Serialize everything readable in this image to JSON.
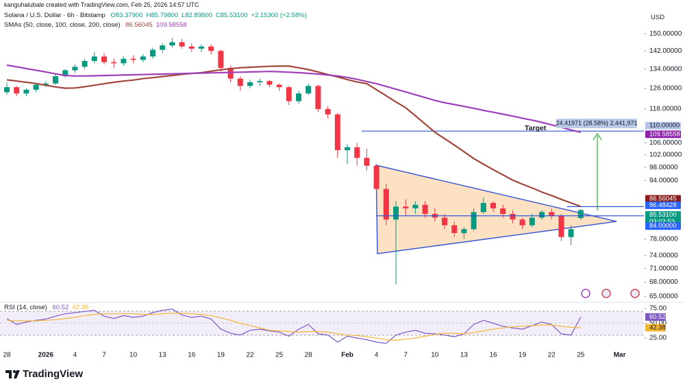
{
  "header": {
    "credit": "kanguhalubale created with TradingView.com, Feb 25, 2026 14:57 UTC"
  },
  "chart_data": {
    "type": "candlestick",
    "symbol": "Solana / U.S. Dollar · 6h · Bitstamp",
    "ohlc_legend": [
      "O83.37900",
      "H85.79800",
      "L82.89800",
      "C85.53100",
      "+2.15300 (+2.58%)"
    ],
    "currency": "USD",
    "categories": [
      "28",
      null,
      null,
      null,
      "2026",
      null,
      null,
      "4",
      null,
      null,
      "7",
      null,
      null,
      "10",
      null,
      null,
      "13",
      null,
      null,
      "16",
      null,
      null,
      "19",
      null,
      null,
      "22",
      null,
      null,
      "25",
      null,
      null,
      "28",
      null,
      null,
      null,
      "Feb",
      null,
      null,
      "4",
      null,
      null,
      "7",
      null,
      null,
      "10",
      null,
      null,
      "13",
      null,
      null,
      "16",
      null,
      null,
      "19",
      null,
      null,
      "22",
      null,
      null,
      "25",
      null,
      null,
      null,
      "Mar"
    ],
    "open": [
      124.5,
      126.5,
      124,
      125.5,
      127.5,
      128,
      131,
      133.5,
      135,
      137.5,
      139.5,
      137,
      136.5,
      138.5,
      138,
      139.5,
      142.5,
      144.5,
      146,
      144,
      143,
      144,
      142,
      134.5,
      130,
      127,
      128.5,
      129,
      127.5,
      126.5,
      121,
      124,
      127,
      118,
      116,
      103.5,
      104.5,
      101,
      98.5,
      91.5,
      83,
      86.5,
      86,
      87,
      84.5,
      83.5,
      81.5,
      79.5,
      80.5,
      85,
      87.5,
      86,
      84.5,
      83,
      81.5,
      83.5,
      85,
      84,
      78.5,
      83.379,
      null,
      null,
      null,
      null
    ],
    "high": [
      128.5,
      127,
      126,
      128,
      129,
      132,
      134,
      136,
      138.5,
      141.5,
      141,
      138.5,
      139.5,
      140,
      140.5,
      143.5,
      145.5,
      148,
      147.5,
      145.5,
      145,
      145,
      142.5,
      135.5,
      131,
      129.5,
      130,
      129.5,
      128,
      127,
      125,
      128,
      127.5,
      119,
      116.5,
      105.5,
      106,
      104,
      99,
      93,
      88,
      88.5,
      88,
      88,
      86,
      84.5,
      82.5,
      81,
      86,
      89,
      88,
      87,
      85.5,
      83.5,
      84.5,
      85.5,
      86,
      84.5,
      81.5,
      85.798,
      null,
      null,
      null,
      null
    ],
    "low": [
      123.5,
      123,
      123,
      124.5,
      126.5,
      127.5,
      130.5,
      132.5,
      134,
      136.5,
      136,
      134.5,
      135.5,
      136.5,
      137,
      138.5,
      141,
      143.5,
      143,
      141.5,
      141.5,
      140.5,
      133,
      128.5,
      125,
      126,
      127,
      126.5,
      125,
      119.5,
      120,
      123.5,
      117,
      114.5,
      101,
      99,
      98.5,
      97,
      90.5,
      81.5,
      67.5,
      84,
      84.5,
      83.5,
      82.5,
      80.5,
      78.5,
      78,
      80,
      84.5,
      85,
      83.5,
      82,
      80.5,
      81,
      83,
      83,
      77.5,
      76.5,
      82.898,
      null,
      null,
      null,
      null
    ],
    "close": [
      126.5,
      124,
      125.5,
      127.5,
      128,
      131,
      133.5,
      135,
      137.5,
      139.5,
      137,
      136.5,
      138.5,
      138,
      139.5,
      142.5,
      144.5,
      146,
      144,
      143,
      144,
      142,
      134.5,
      130,
      127,
      128.5,
      129,
      127.5,
      126.5,
      121,
      124,
      127,
      118,
      116,
      103.5,
      104.5,
      101,
      98.5,
      91.5,
      83,
      86.5,
      86,
      87,
      84.5,
      83.5,
      81.5,
      79.5,
      80.5,
      85,
      87.5,
      86,
      84.5,
      83,
      81.5,
      83.5,
      85,
      84,
      78.5,
      80.5,
      85.531,
      null,
      null,
      null,
      null
    ],
    "up_color": "#089981",
    "down_color": "#f23645",
    "log_scale": true,
    "ylim": [
      63.9,
      156.4
    ],
    "yticks": [
      {
        "value": 150,
        "label": "150.00000"
      },
      {
        "value": 142,
        "label": "142.00000"
      },
      {
        "value": 134,
        "label": "134.00000"
      },
      {
        "value": 126,
        "label": "126.00000"
      },
      {
        "value": 118,
        "label": "118.00000"
      },
      {
        "value": 106,
        "label": "106.00000"
      },
      {
        "value": 102,
        "label": "102.00000"
      },
      {
        "value": 98,
        "label": "98.00000"
      },
      {
        "value": 94,
        "label": "94.00000"
      },
      {
        "value": 78,
        "label": "78.00000"
      },
      {
        "value": 74,
        "label": "74.00000"
      },
      {
        "value": 71,
        "label": "71.00000"
      },
      {
        "value": 68,
        "label": "68.00000"
      },
      {
        "value": 65,
        "label": "65.00000"
      }
    ],
    "sma_label": "SMAs (50, close, 100, close, 200, close)",
    "series": [
      {
        "last_label": "86.56045",
        "color": "#a0463c",
        "values": [
          129.5,
          129,
          128.5,
          128,
          127.3,
          126.6,
          126.1,
          126.2,
          126.7,
          127.3,
          127.9,
          128.5,
          129,
          129.4,
          130,
          130.4,
          130.9,
          131.3,
          131.8,
          132.2,
          132.5,
          133.1,
          133.7,
          134.2,
          134.6,
          134.8,
          135,
          135.2,
          135.3,
          135.3,
          134.6,
          133.8,
          132.8,
          131.7,
          130.7,
          129.6,
          128.6,
          127.9,
          125.5,
          123.1,
          120.7,
          118.5,
          115.5,
          112.5,
          109.6,
          107.4,
          105.2,
          103,
          100.8,
          99,
          97.3,
          95.7,
          94.1,
          92.9,
          91.8,
          90.6,
          89.6,
          88.5,
          87.5,
          86.56045,
          null,
          null,
          null,
          null
        ]
      },
      {
        "last_label": "109.58558",
        "color": "#9c3fb8",
        "values": [
          135.7,
          135,
          134.2,
          133.5,
          132.8,
          132,
          131.3,
          131.1,
          131.1,
          131.2,
          131.3,
          131.4,
          131.5,
          131.6,
          131.7,
          131.8,
          131.9,
          132,
          132.1,
          132.2,
          132.3,
          132.4,
          132.5,
          132.6,
          132.7,
          132.8,
          132.9,
          133,
          132.9,
          132.7,
          132.5,
          132.2,
          131.9,
          131.5,
          131.1,
          130.5,
          129.7,
          128.8,
          127.9,
          126.8,
          125.7,
          124.6,
          123.5,
          122.4,
          121.3,
          120.4,
          119.7,
          119,
          118.3,
          117.5,
          116.8,
          116.1,
          115.4,
          114.6,
          113.9,
          113.1,
          112.2,
          111.3,
          110.4,
          109.58558,
          null,
          null,
          null,
          null
        ]
      }
    ],
    "price_tags": [
      {
        "value": 110,
        "label": "110.00000",
        "color": "#b3c5e8"
      },
      {
        "value": 109.58558,
        "label": "109.58558",
        "color": "#8e24aa"
      },
      {
        "value": 86.56045,
        "label": "86.56045",
        "color": "#8b1a1a"
      },
      {
        "value": 86.48428,
        "label": "86.48428",
        "color": "#2962ff"
      },
      {
        "value": 85.531,
        "label": "85.53100",
        "countdown": "03:02:53",
        "color": "#089981"
      },
      {
        "value": 84,
        "label": "84.00000",
        "color": "#2962ff"
      }
    ],
    "annotations": {
      "target": "Target",
      "measure": "24.41971 (28.58%) 2,441,971"
    },
    "rsi": {
      "label": "RSI (14, close)",
      "ylim": [
        11,
        86.6
      ],
      "yticks": [
        {
          "value": 75,
          "label": "75.00"
        },
        {
          "value": 50,
          "label": "50.00"
        },
        {
          "value": 25,
          "label": "25.00"
        }
      ],
      "series": [
        {
          "last_label": "60.52",
          "color": "#7e57c2",
          "values": [
            58,
            48,
            52,
            55,
            57,
            62,
            66,
            68,
            70,
            72,
            62,
            58,
            63,
            60,
            62,
            68,
            72,
            74,
            64,
            60,
            62,
            57,
            40,
            33,
            30,
            38,
            40,
            37,
            35,
            28,
            40,
            48,
            32,
            30,
            18,
            28,
            25,
            22,
            18,
            16,
            30,
            35,
            38,
            33,
            32,
            30,
            27,
            32,
            48,
            55,
            50,
            45,
            42,
            40,
            46,
            52,
            48,
            32,
            30,
            60.52,
            null,
            null,
            null,
            null
          ]
        },
        {
          "last_label": "42.38",
          "color": "#f2b636",
          "values": [
            55,
            54,
            54,
            54,
            55,
            56,
            58,
            60,
            63,
            65,
            66,
            66,
            66,
            66,
            65,
            65,
            66,
            67,
            67,
            66,
            65,
            63,
            59,
            55,
            50,
            46,
            42,
            38,
            37,
            36,
            35,
            36,
            36,
            35,
            32,
            30,
            29,
            27,
            25,
            22,
            21,
            23,
            25,
            28,
            31,
            33,
            33,
            32,
            34,
            37,
            40,
            42,
            44,
            45,
            46,
            47,
            47,
            45,
            43,
            42.38,
            null,
            null,
            null,
            null
          ]
        }
      ]
    }
  },
  "footer": {
    "brand": "TradingView"
  }
}
